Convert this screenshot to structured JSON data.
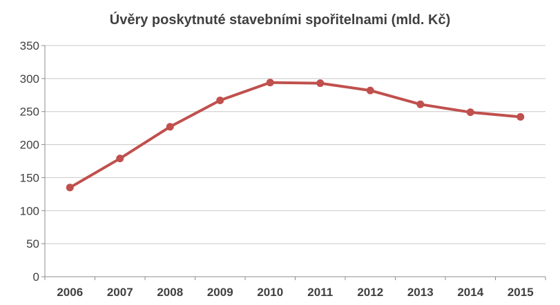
{
  "chart_data": {
    "type": "line",
    "title": "Úvěry poskytnuté stavebními spořitelnami  (mld. Kč)",
    "xlabel": "",
    "ylabel": "",
    "categories": [
      "2006",
      "2007",
      "2008",
      "2009",
      "2010",
      "2011",
      "2012",
      "2013",
      "2014",
      "2015"
    ],
    "series": [
      {
        "values": [
          135,
          179,
          227,
          267,
          294,
          293,
          282,
          261,
          249,
          242
        ],
        "color": "#C0504D"
      }
    ],
    "ylim": [
      0,
      350
    ],
    "yticks": [
      0,
      50,
      100,
      150,
      200,
      250,
      300,
      350
    ],
    "grid": true,
    "legend": "none"
  }
}
